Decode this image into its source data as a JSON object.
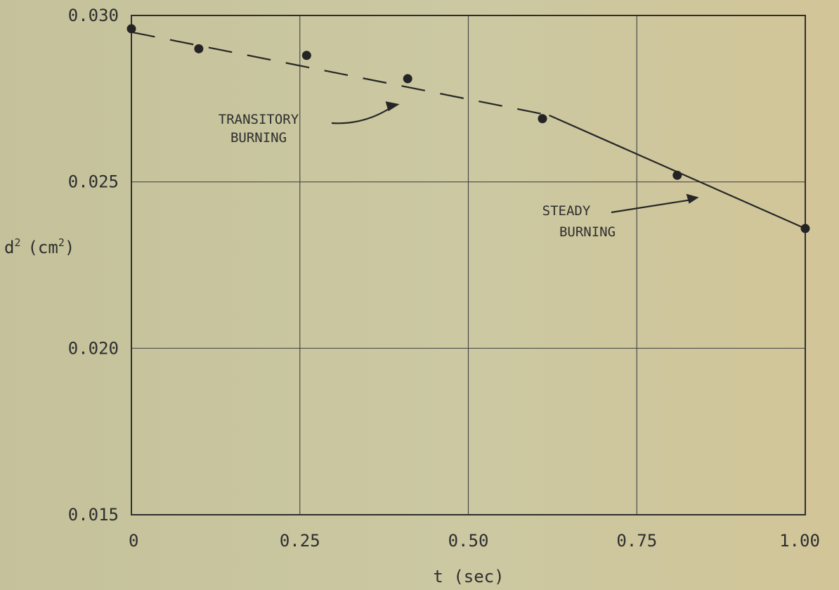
{
  "chart_data": {
    "type": "scatter",
    "title": "",
    "xlabel": "t (sec)",
    "ylabel_base": "d",
    "ylabel_sup": "2",
    "ylabel_unit": "(cm",
    "ylabel_unit_sup": "2",
    "ylabel_close": ")",
    "xlim": [
      0,
      1.0
    ],
    "ylim": [
      0.015,
      0.03
    ],
    "x_ticks": [
      0,
      0.25,
      0.5,
      0.75,
      1.0
    ],
    "x_tick_labels": [
      "0",
      "0.25",
      "0.50",
      "0.75",
      "1.00"
    ],
    "y_ticks": [
      0.015,
      0.02,
      0.025,
      0.03
    ],
    "y_tick_labels": [
      "0.015",
      "0.020",
      "0.025",
      "0.030"
    ],
    "grid": true,
    "points": [
      {
        "x": 0.0,
        "y": 0.0296
      },
      {
        "x": 0.1,
        "y": 0.029
      },
      {
        "x": 0.26,
        "y": 0.0288
      },
      {
        "x": 0.41,
        "y": 0.0281
      },
      {
        "x": 0.61,
        "y": 0.0269
      },
      {
        "x": 0.81,
        "y": 0.0252
      },
      {
        "x": 1.0,
        "y": 0.0236
      }
    ],
    "transitory_fit": {
      "x": [
        0.0,
        0.62
      ],
      "y": [
        0.0295,
        0.027
      ],
      "style": "dashed"
    },
    "steady_fit": {
      "x": [
        0.62,
        1.0
      ],
      "y": [
        0.027,
        0.0236
      ],
      "style": "solid"
    },
    "annotations": [
      {
        "lines": [
          "TRANSITORY",
          "BURNING"
        ],
        "anchor_x": 0.4,
        "anchor_y": 0.0278
      },
      {
        "lines": [
          "STEADY",
          "BURNING"
        ],
        "anchor_x": 0.84,
        "anchor_y": 0.0246
      }
    ]
  }
}
